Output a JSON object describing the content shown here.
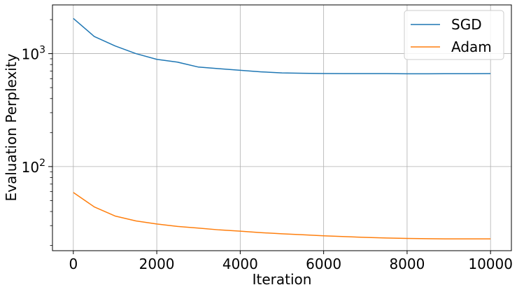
{
  "chart_data": {
    "type": "line",
    "title": "",
    "xlabel": "Iteration",
    "ylabel": "Evaluation Perplexity",
    "xlim": [
      -500,
      10500
    ],
    "ylim": [
      18,
      2700
    ],
    "yscale": "log",
    "grid": true,
    "legend_position": "top-right",
    "xticks": [
      0,
      2000,
      4000,
      6000,
      8000,
      10000
    ],
    "xtick_labels": [
      "0",
      "2000",
      "4000",
      "6000",
      "8000",
      "10000"
    ],
    "yticks": [
      100,
      1000
    ],
    "ytick_labels": [
      {
        "base": "10",
        "exp": "2"
      },
      {
        "base": "10",
        "exp": "3"
      }
    ],
    "series": [
      {
        "name": "SGD",
        "color": "#1f77b4",
        "x": [
          0,
          500,
          1000,
          1500,
          2000,
          2500,
          3000,
          3500,
          4000,
          4500,
          5000,
          5500,
          6000,
          6500,
          7000,
          7500,
          8000,
          8500,
          9000,
          9500,
          10000
        ],
        "y": [
          2050,
          1420,
          1170,
          1000,
          890,
          840,
          760,
          735,
          712,
          690,
          675,
          670,
          667,
          665,
          665,
          665,
          663,
          663,
          664,
          664,
          665
        ]
      },
      {
        "name": "Adam",
        "color": "#ff7f0e",
        "x": [
          0,
          500,
          1000,
          1500,
          2000,
          2500,
          3000,
          3500,
          4000,
          4500,
          5000,
          5500,
          6000,
          6500,
          7000,
          7500,
          8000,
          8500,
          9000,
          9500,
          10000
        ],
        "y": [
          59,
          44,
          36.5,
          33,
          31,
          29.5,
          28.5,
          27.5,
          26.8,
          26,
          25.4,
          24.9,
          24.4,
          24,
          23.6,
          23.3,
          23.1,
          23,
          22.9,
          22.9,
          22.9
        ]
      }
    ]
  }
}
